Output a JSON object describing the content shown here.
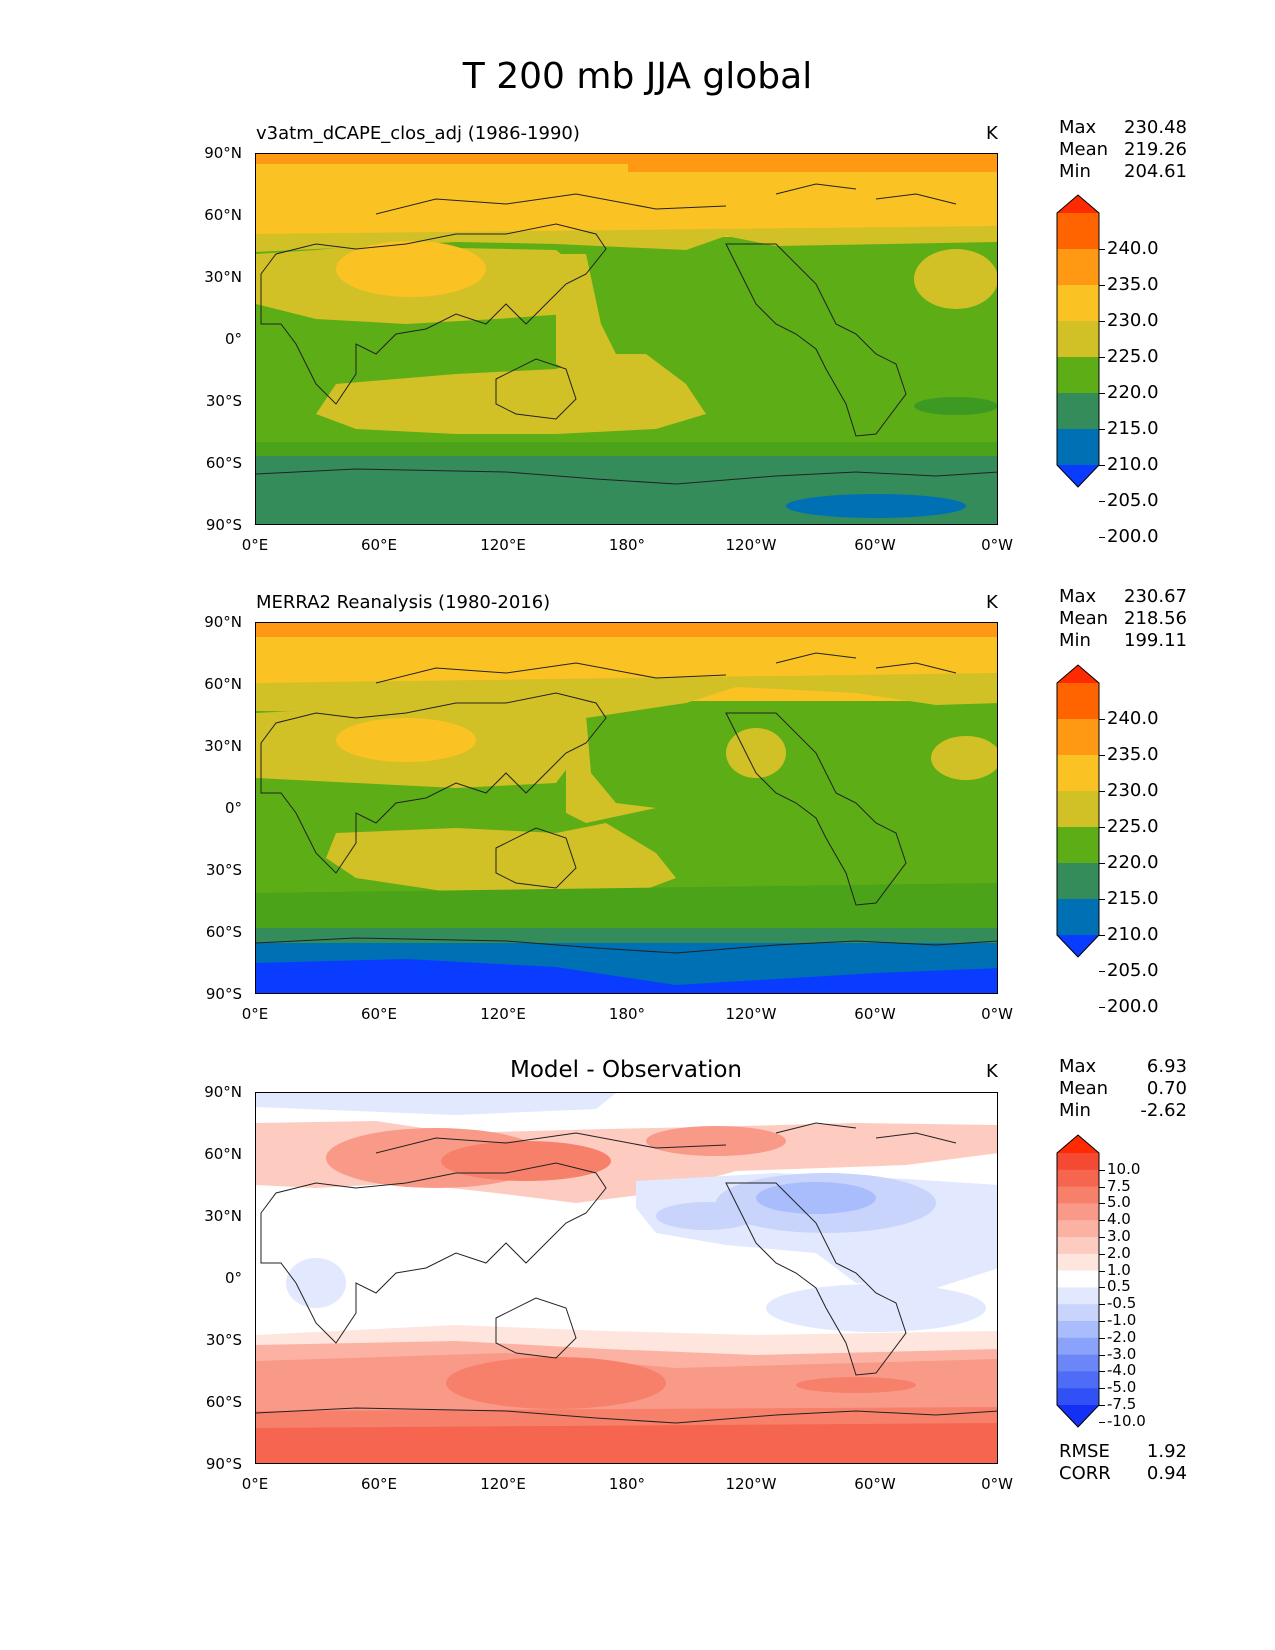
{
  "title": "T 200 mb JJA global",
  "units": "K",
  "lon_labels": [
    "0°E",
    "60°E",
    "120°E",
    "180°",
    "120°W",
    "60°W",
    "0°W"
  ],
  "lat_labels": [
    "90°N",
    "60°N",
    "30°N",
    "0°",
    "30°S",
    "60°S",
    "90°S"
  ],
  "panels": [
    {
      "title": "v3atm_dCAPE_clos_adj (1986-1990)",
      "units": "K",
      "stats": {
        "max_label": "Max",
        "max": "230.48",
        "mean_label": "Mean",
        "mean": "219.26",
        "min_label": "Min",
        "min": "204.61"
      },
      "colorbar": {
        "ticks": [
          "240.0",
          "235.0",
          "230.0",
          "225.0",
          "220.0",
          "215.0",
          "210.0",
          "205.0",
          "200.0"
        ],
        "colors": [
          "#ff2a00",
          "#ff6400",
          "#ff9812",
          "#fbc224",
          "#d2c027",
          "#5dad16",
          "#348c5a",
          "#0070b4",
          "#0a3cff"
        ]
      }
    },
    {
      "title": "MERRA2 Reanalysis (1980-2016)",
      "units": "K",
      "stats": {
        "max_label": "Max",
        "max": "230.67",
        "mean_label": "Mean",
        "mean": "218.56",
        "min_label": "Min",
        "min": "199.11"
      },
      "colorbar": {
        "ticks": [
          "240.0",
          "235.0",
          "230.0",
          "225.0",
          "220.0",
          "215.0",
          "210.0",
          "205.0",
          "200.0"
        ],
        "colors": [
          "#ff2a00",
          "#ff6400",
          "#ff9812",
          "#fbc224",
          "#d2c027",
          "#5dad16",
          "#348c5a",
          "#0070b4",
          "#0a3cff"
        ]
      }
    },
    {
      "title": "Model - Observation",
      "units": "K",
      "stats": {
        "max_label": "Max",
        "max": "6.93",
        "mean_label": "Mean",
        "mean": "0.70",
        "min_label": "Min",
        "min": "-2.62"
      },
      "colorbar": {
        "ticks": [
          "10.0",
          "7.5",
          "5.0",
          "4.0",
          "3.0",
          "2.0",
          "1.0",
          "0.5",
          "-0.5",
          "-1.0",
          "-2.0",
          "-3.0",
          "-4.0",
          "-5.0",
          "-7.5",
          "-10.0"
        ],
        "colors": [
          "#ff2a00",
          "#f44a33",
          "#f5654f",
          "#f7806a",
          "#f99987",
          "#fbb2a3",
          "#fdcbbf",
          "#fee5de",
          "#ffffff",
          "#e2e8fd",
          "#c8d4fc",
          "#a9bcfb",
          "#8aa2f9",
          "#6b87f7",
          "#4e6cf6",
          "#3150f5",
          "#1430f4"
        ]
      },
      "metrics": {
        "rmse_label": "RMSE",
        "rmse": "1.92",
        "corr_label": "CORR",
        "corr": "0.94"
      }
    }
  ]
}
